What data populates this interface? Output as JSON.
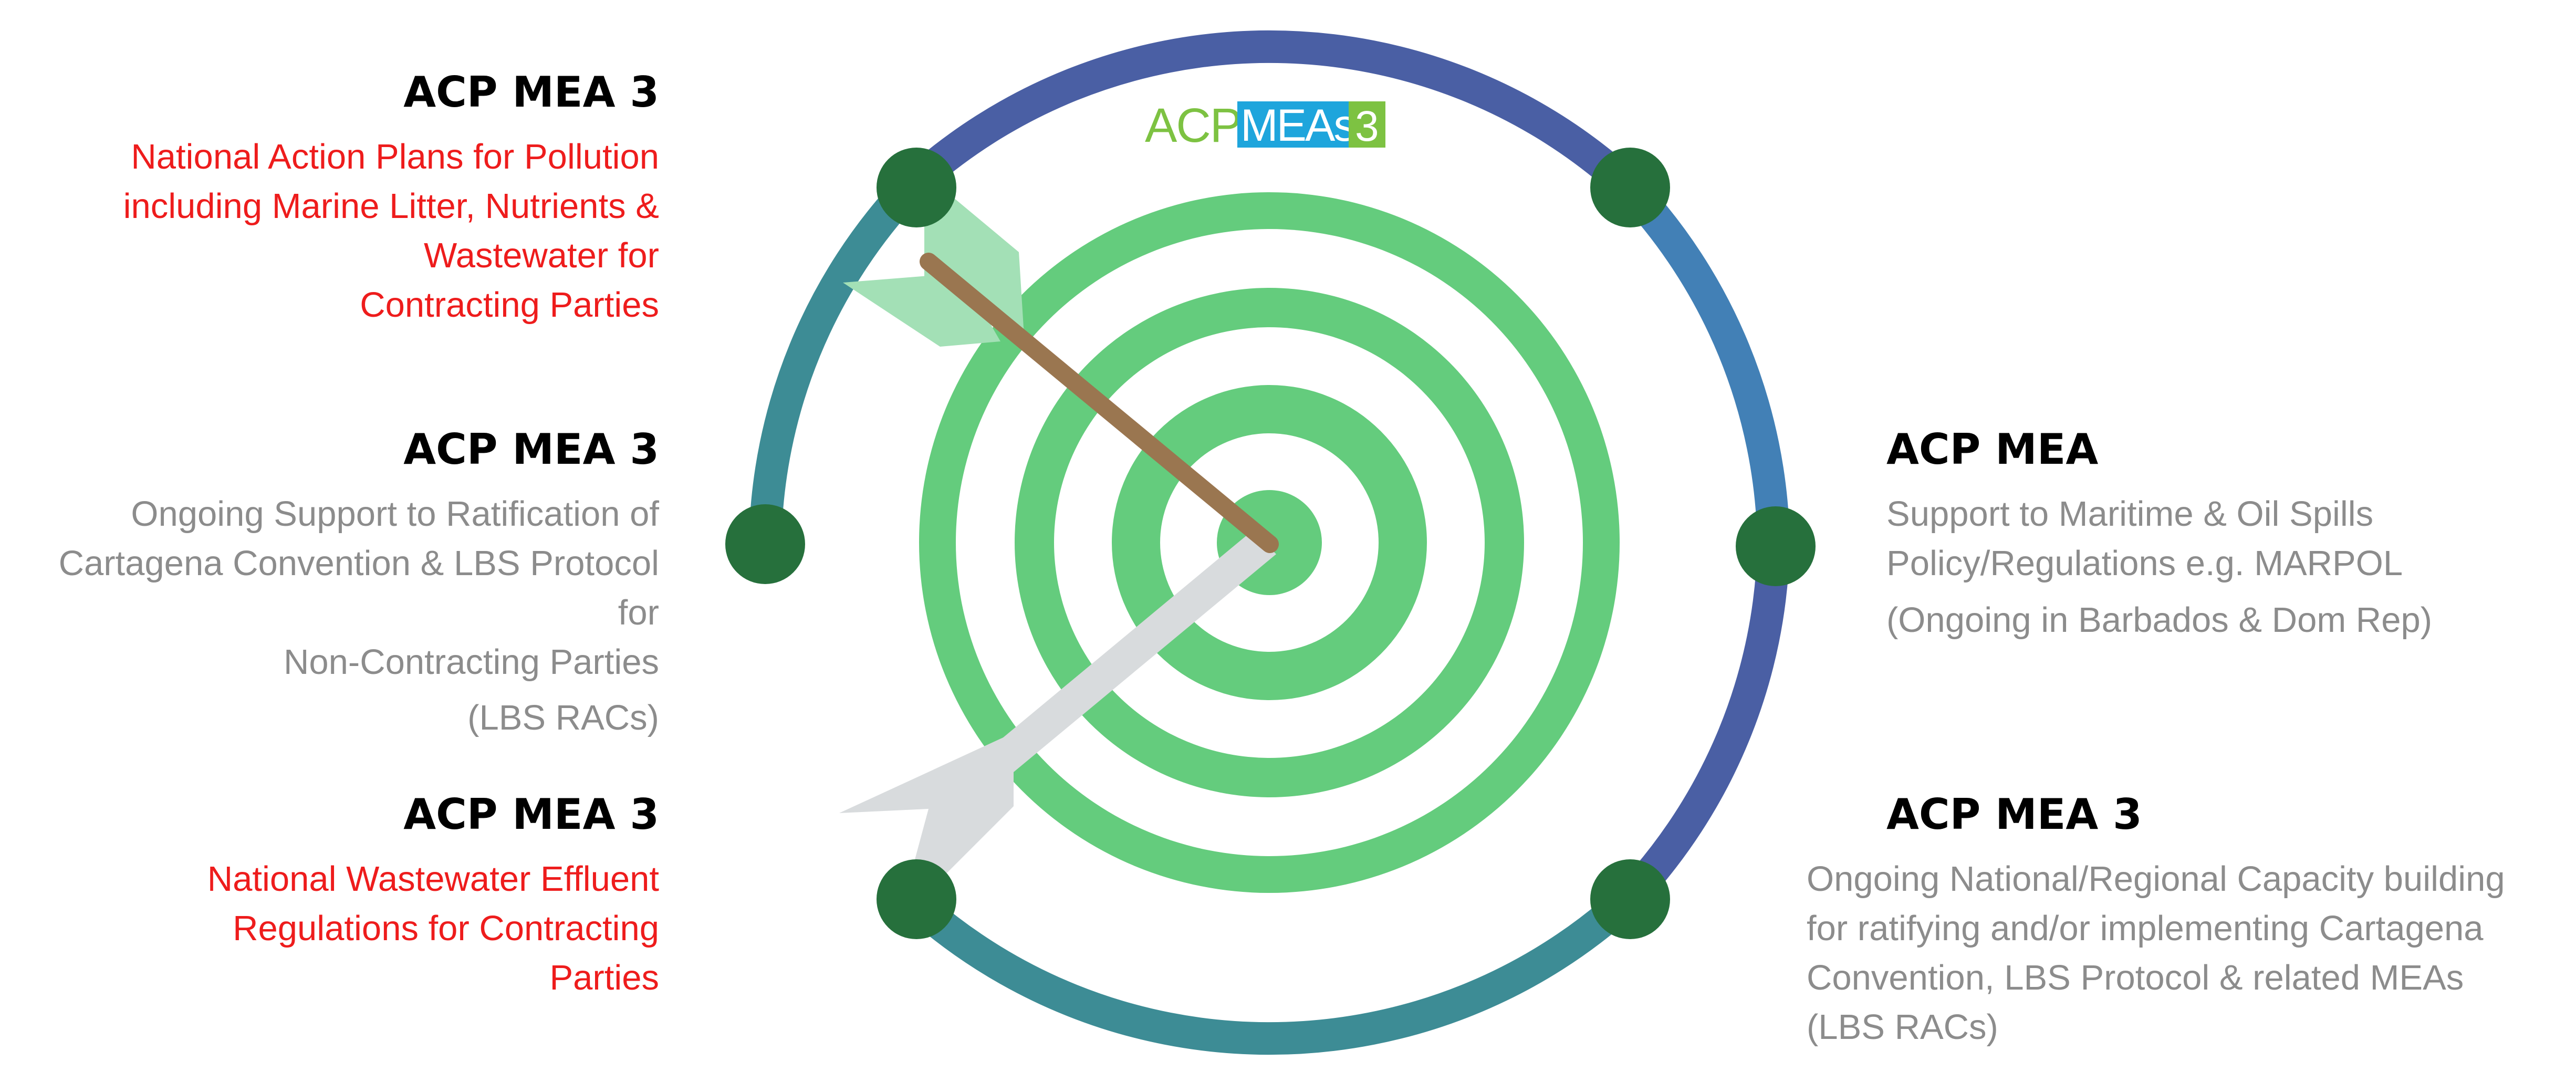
{
  "logo": {
    "prefix": "ACP",
    "middle": "MEAs",
    "suffix": "3",
    "colors": {
      "prefix": "#7dc242",
      "middle_bg": "#1ea5dc",
      "middle_text": "#ffffff",
      "suffix_bg": "#7dc242",
      "suffix_text": "#ffffff"
    }
  },
  "colors": {
    "ring_dark_blue": "#4a5fa4",
    "ring_mid_blue": "#4280b6",
    "ring_teal": "#3d8c95",
    "node": "#26703c",
    "target_green": "#64cc7d",
    "arrow_shaft": "#9a7650",
    "arrow_fletching": "#a3e0b6",
    "arrow_shadow": "#d8dbdd",
    "red_text": "#ee1c1c",
    "grey_text": "#8c8c8c"
  },
  "blocks": {
    "top_left": {
      "heading": "ACP MEA 3",
      "lines": [
        "National Action Plans for Pollution",
        "including Marine Litter, Nutrients &",
        "Wastewater for",
        "Contracting Parties"
      ]
    },
    "mid_left": {
      "heading": "ACP MEA 3",
      "lines": [
        "Ongoing Support to Ratification of",
        "Cartagena Convention & LBS Protocol",
        "for",
        "Non-Contracting Parties"
      ],
      "note": "(LBS RACs)"
    },
    "bottom_left": {
      "heading": "ACP MEA 3",
      "lines": [
        "National Wastewater Effluent",
        "Regulations for Contracting",
        "Parties"
      ]
    },
    "mid_right": {
      "heading": "ACP MEA",
      "lines": [
        "Support to Maritime & Oil Spills",
        "Policy/Regulations e.g. MARPOL"
      ],
      "note": "(Ongoing in Barbados & Dom Rep)"
    },
    "bottom_right": {
      "heading": "ACP MEA 3",
      "lines": [
        "Ongoing National/Regional Capacity building",
        "for ratifying and/or implementing Cartagena",
        "Convention, LBS Protocol & related MEAs",
        "(LBS RACs)"
      ]
    }
  }
}
